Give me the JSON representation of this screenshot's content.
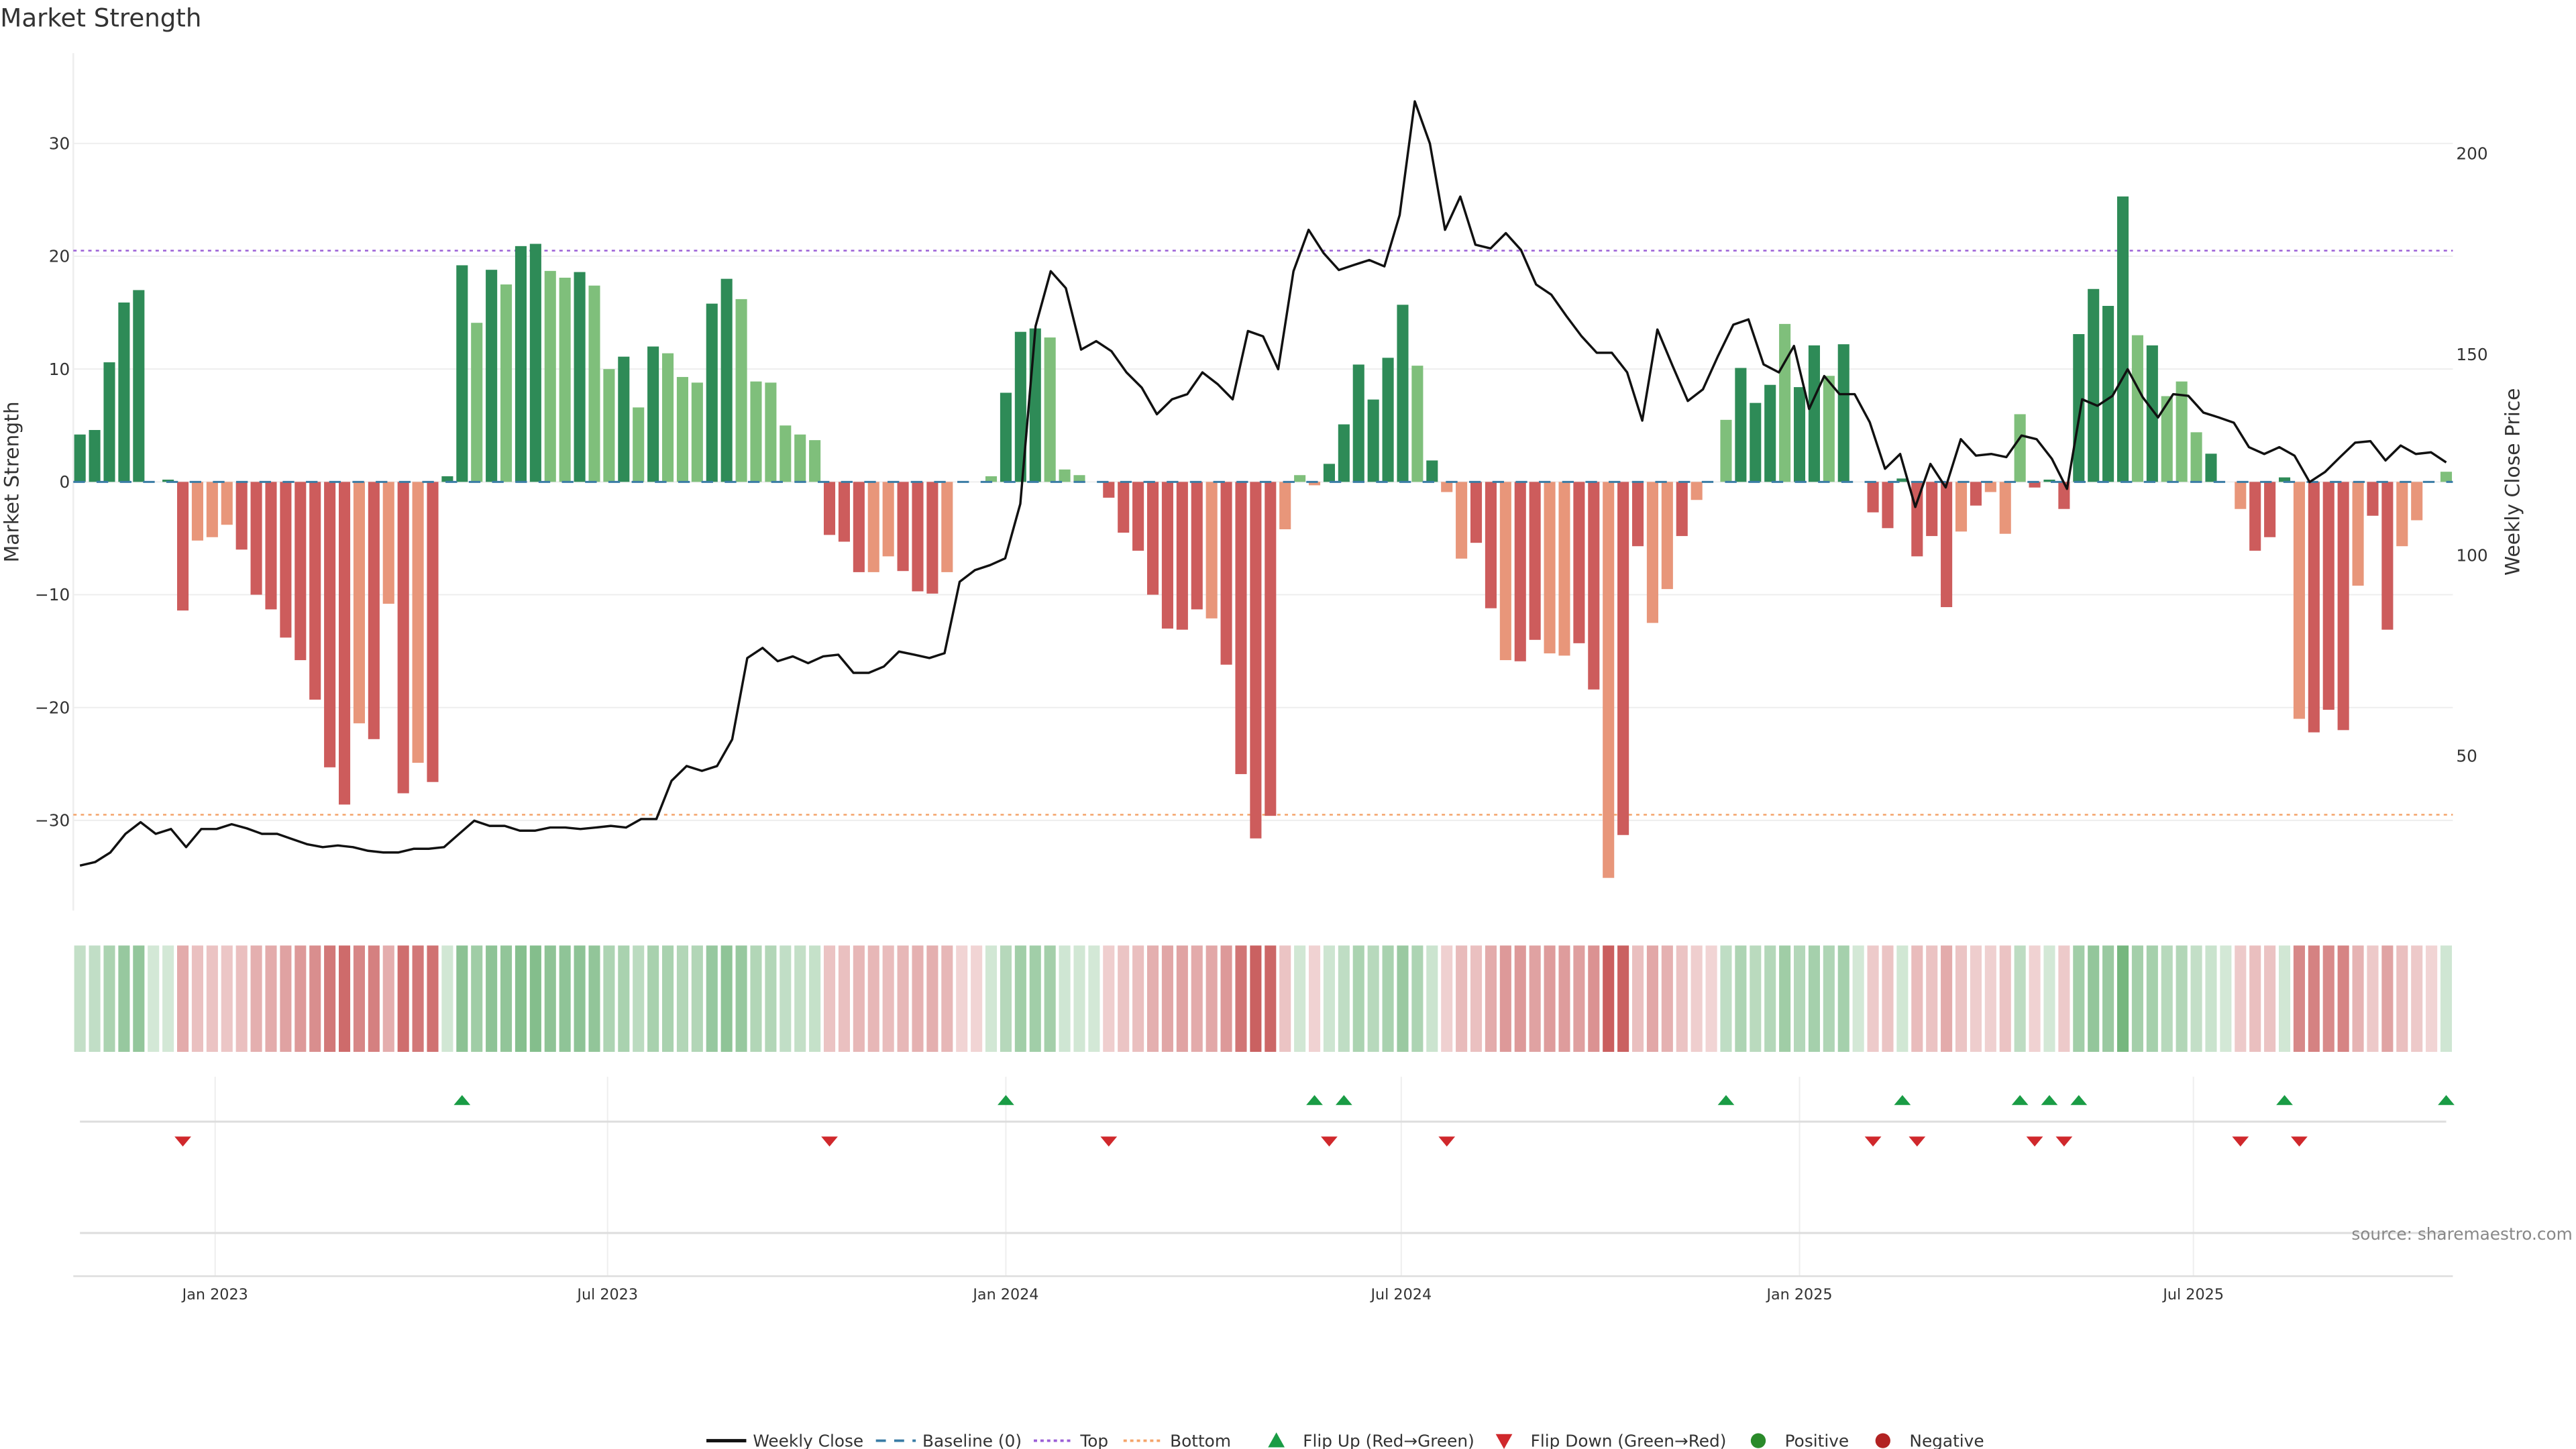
{
  "chart_data": {
    "type": "bar",
    "title": "Market Strength",
    "ylabel": "Market Strength",
    "y2label": "Weekly Close Price",
    "ylim": [
      -38,
      38
    ],
    "y2lim": [
      11.5,
      225
    ],
    "yticks": [
      -30,
      -20,
      -10,
      0,
      10,
      20,
      30
    ],
    "yticklabels": [
      "−30",
      "−20",
      "−10",
      "0",
      "10",
      "20",
      "30"
    ],
    "y2ticks": [
      50,
      100,
      150,
      200
    ],
    "y2ticklabels": [
      "50",
      "100",
      "150",
      "200"
    ],
    "xticks": [
      {
        "label": "Jan 2023",
        "week": 9.2
      },
      {
        "label": "Jul 2023",
        "week": 35.9
      },
      {
        "label": "Jan 2024",
        "week": 63
      },
      {
        "label": "Jul 2024",
        "week": 89.9
      },
      {
        "label": "Jan 2025",
        "week": 117
      },
      {
        "label": "Jul 2025",
        "week": 143.8
      }
    ],
    "top_level": 20.5,
    "bottom_level": -29.5,
    "baseline": 0,
    "strength": [
      4.2,
      4.6,
      10.6,
      15.9,
      17.0,
      0,
      0.2,
      -11.4,
      -5.2,
      -4.9,
      -3.8,
      -6.0,
      -10.0,
      -11.3,
      -13.8,
      -15.8,
      -19.3,
      -25.3,
      -28.6,
      -21.4,
      -22.8,
      -10.8,
      -27.6,
      -24.9,
      -26.6,
      0.5,
      19.2,
      14.1,
      18.8,
      17.5,
      20.9,
      21.1,
      18.7,
      18.1,
      18.6,
      17.4,
      10.0,
      11.1,
      6.6,
      12.0,
      11.4,
      9.3,
      8.8,
      15.8,
      18.0,
      16.2,
      8.9,
      8.8,
      5.0,
      4.2,
      3.7,
      -4.7,
      -5.3,
      -8.0,
      -8.0,
      -6.6,
      -7.9,
      -9.7,
      -9.9,
      -8.0,
      0,
      0,
      0.5,
      7.9,
      13.3,
      13.6,
      12.8,
      1.1,
      0.6,
      0,
      -1.4,
      -4.5,
      -6.1,
      -10.0,
      -13.0,
      -13.1,
      -11.3,
      -12.1,
      -16.2,
      -25.9,
      -31.6,
      -29.6,
      -4.2,
      0.6,
      -0.3,
      1.6,
      5.1,
      10.4,
      7.3,
      11.0,
      15.7,
      10.3,
      1.9,
      -0.9,
      -6.8,
      -5.4,
      -11.2,
      -15.8,
      -15.9,
      -14.0,
      -15.2,
      -15.4,
      -14.3,
      -18.4,
      -35.1,
      -31.3,
      -5.7,
      -12.5,
      -9.5,
      -4.8,
      -1.6,
      0,
      5.5,
      10.1,
      7.0,
      8.6,
      14.0,
      8.4,
      12.1,
      9.4,
      12.2,
      0,
      -2.7,
      -4.1,
      0.3,
      -6.6,
      -4.8,
      -11.1,
      -4.4,
      -2.1,
      -0.9,
      -4.6,
      6.0,
      -0.5,
      0.2,
      -2.4,
      13.1,
      17.1,
      15.6,
      25.3,
      13.0,
      12.1,
      7.6,
      8.9,
      4.4,
      2.5,
      0,
      -2.4,
      -6.1,
      -4.9,
      0.4,
      -21.0,
      -22.2,
      -20.2,
      -22.0,
      -9.2,
      -3.0,
      -13.1,
      -5.7,
      -3.4,
      0,
      0.9
    ],
    "shade": "DDDDDDDDLLLDDDDDDDDLDLDLDDDLDLDDLLDLLDLDLLLDDLLLLLLDDDLLDDDLDDLDDDLLLDDDDDDDDLDDDDLLLDDDDDDLDLLDDLDDLLDDLDDLLDLLLDDDLDDLDLDDDDDDLDLLLDDDDDDDLDLLLDLLDDDLDDDLDDLLDLLDD",
    "close": [
      22.7,
      23.6,
      26,
      30.6,
      33.5,
      30.6,
      31.8,
      27.3,
      31.8,
      31.8,
      33,
      32,
      30.6,
      30.6,
      29.3,
      28,
      27.3,
      27.7,
      27.3,
      26.4,
      26,
      26,
      26.9,
      26.9,
      27.3,
      30.6,
      33.9,
      32.6,
      32.6,
      31.4,
      31.4,
      32.2,
      32.2,
      31.8,
      32.2,
      32.6,
      32.2,
      34.3,
      34.3,
      43.8,
      47.5,
      46.3,
      47.5,
      54.1,
      74.4,
      76.9,
      73.6,
      74.8,
      73.1,
      74.8,
      75.2,
      70.7,
      70.7,
      72.3,
      76,
      75.2,
      74.4,
      75.6,
      93.4,
      96.3,
      97.5,
      99.2,
      112.8,
      157,
      170.7,
      166.5,
      151.2,
      153.3,
      150.8,
      145.5,
      141.7,
      135.1,
      138.8,
      140.1,
      145.5,
      142.6,
      138.8,
      155.8,
      154.5,
      146.3,
      170.7,
      181,
      175.2,
      171,
      172.3,
      173.5,
      171.9,
      184.7,
      213,
      202.5,
      181,
      189.3,
      177.3,
      176.4,
      180.2,
      176,
      167.4,
      164.9,
      159.5,
      154.5,
      150.4,
      150.4,
      145.5,
      133.5,
      156.2,
      147.1,
      138.4,
      141.3,
      149.6,
      157.4,
      158.7,
      147.5,
      145.5,
      152.1,
      136.4,
      144.6,
      140.1,
      140.1,
      133.1,
      121.5,
      125.2,
      112,
      122.7,
      116.9,
      128.9,
      124.8,
      125.2,
      124.4,
      129.8,
      128.9,
      124,
      116.5,
      138.8,
      137.2,
      139.7,
      146.3,
      139.3,
      134.3,
      140.1,
      139.7,
      135.5,
      134.3,
      133,
      126.9,
      125.2,
      126.9,
      124.8,
      118.2,
      120.7,
      124.4,
      128,
      128.4,
      123.6,
      127.3,
      125.2,
      125.6,
      123.1
    ],
    "flip_up_weeks": [
      26,
      63,
      84,
      86,
      112,
      124,
      132,
      134,
      136,
      150,
      161
    ],
    "flip_down_weeks": [
      7,
      51,
      70,
      85,
      93,
      122,
      125,
      133,
      135,
      147,
      151
    ],
    "legend": [
      {
        "label": "Weekly Close",
        "kind": "line",
        "color": "#111111"
      },
      {
        "label": "Baseline (0)",
        "kind": "dash",
        "color": "#3a7ca5"
      },
      {
        "label": "Top",
        "kind": "dot",
        "color": "#9b5fd6"
      },
      {
        "label": "Bottom",
        "kind": "dot",
        "color": "#f4a46a"
      },
      {
        "label": "Flip Up (Red→Green)",
        "kind": "up",
        "color": "#1a9c45"
      },
      {
        "label": "Flip Down (Green→Red)",
        "kind": "down",
        "color": "#d0282c"
      },
      {
        "label": "Positive",
        "kind": "dot-marker",
        "color": "#2a8a2a"
      },
      {
        "label": "Negative",
        "kind": "dot-marker",
        "color": "#b22222"
      }
    ],
    "legend_position": "bottom-center",
    "source": "source: sharemaestro.com"
  },
  "colors": {
    "strong_pos": "#2e8b57",
    "weak_pos": "#7fbf7b",
    "strong_neg": "#cd5c5c",
    "weak_neg": "#e8967a"
  }
}
